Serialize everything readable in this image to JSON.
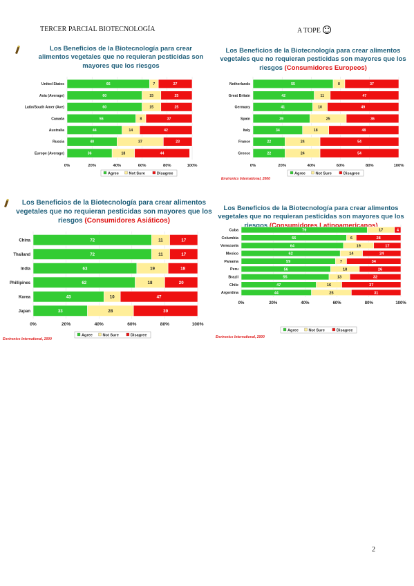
{
  "header": {
    "left": "TERCER PARCIAL BIOTECNOLOGÍA",
    "right": "A TOPE"
  },
  "page_number": "2",
  "title_main": "Los Beneficios de la Biotecnología para crear alimentos vegetales que no requieran pesticidas son mayores que los riesgos",
  "colors": {
    "agree": "#33cc33",
    "not_sure": "#ffee99",
    "disagree": "#ee1111",
    "title": "#1f5f7a",
    "highlight": "#dd1111"
  },
  "legend_labels": [
    "Agree",
    "Not Sure",
    "Disagree"
  ],
  "chart_data": [
    {
      "type": "bar",
      "orientation": "horizontal",
      "stacked": true,
      "title": "Los Beneficios de la Biotecnología para crear alimentos vegetales que no requieran pesticidas son mayores que los riesgos",
      "title_suffix": "",
      "categories": [
        "United States",
        "Asia (Average)",
        "Latin/South Amer (Ave)",
        "Canada",
        "Australia",
        "Russia",
        "Europe (Average)"
      ],
      "series": [
        {
          "name": "Agree",
          "values": [
            66,
            60,
            60,
            55,
            44,
            40,
            36
          ]
        },
        {
          "name": "Not Sure",
          "values": [
            7,
            15,
            15,
            8,
            14,
            37,
            18
          ]
        },
        {
          "name": "Disagree",
          "values": [
            27,
            25,
            25,
            37,
            42,
            23,
            44
          ]
        }
      ],
      "xlim": [
        0,
        100
      ],
      "xticks": [
        "0%",
        "20%",
        "40%",
        "60%",
        "80%",
        "100%"
      ],
      "legend": "bottom",
      "source": ""
    },
    {
      "type": "bar",
      "orientation": "horizontal",
      "stacked": true,
      "title": "Los Beneficios de la Biotecnología para crear alimentos vegetales que no requieran pesticidas son mayores que los riesgos",
      "title_suffix": "(Consumidores Europeos)",
      "categories": [
        "Netherlands",
        "Great Britain",
        "Germany",
        "Spain",
        "Italy",
        "France",
        "Greece"
      ],
      "series": [
        {
          "name": "Agree",
          "values": [
            55,
            42,
            41,
            39,
            34,
            22,
            22
          ]
        },
        {
          "name": "Not Sure",
          "values": [
            8,
            11,
            10,
            25,
            18,
            24,
            24
          ]
        },
        {
          "name": "Disagree",
          "values": [
            37,
            47,
            49,
            36,
            48,
            54,
            54
          ]
        }
      ],
      "xlim": [
        0,
        100
      ],
      "xticks": [
        "0%",
        "20%",
        "40%",
        "60%",
        "80%",
        "100%"
      ],
      "legend": "bottom",
      "source": "Environics International, 2000"
    },
    {
      "type": "bar",
      "orientation": "horizontal",
      "stacked": true,
      "title": "Los Beneficios de la Biotecnología para crear alimentos vegetales que no requieran pesticidas son mayores que los riesgos",
      "title_suffix": "(Consumidores Asiáticos)",
      "categories": [
        "China",
        "Thailand",
        "India",
        "Phillipines",
        "Korea",
        "Japan"
      ],
      "series": [
        {
          "name": "Agree",
          "values": [
            72,
            72,
            63,
            62,
            43,
            33
          ]
        },
        {
          "name": "Not Sure",
          "values": [
            11,
            11,
            19,
            18,
            10,
            28
          ]
        },
        {
          "name": "Disagree",
          "values": [
            17,
            17,
            18,
            20,
            47,
            39
          ]
        }
      ],
      "xlim": [
        0,
        100
      ],
      "xticks": [
        "0%",
        "20%",
        "40%",
        "60%",
        "80%",
        "100%"
      ],
      "legend": "bottom",
      "source": "Environics International, 2000"
    },
    {
      "type": "bar",
      "orientation": "horizontal",
      "stacked": true,
      "title": "Los Beneficios de la Biotecnología para crear alimentos vegetales que no requieran pesticidas son mayores que los riesgos",
      "title_suffix": "(Consumidores Latinoamericanos)",
      "categories": [
        "Cuba",
        "Columbia",
        "Venezuela",
        "Mexico",
        "Panama",
        "Peru",
        "Brazil",
        "Chile",
        "Argentina"
      ],
      "series": [
        {
          "name": "Agree",
          "values": [
            79,
            66,
            64,
            62,
            59,
            56,
            55,
            47,
            44
          ]
        },
        {
          "name": "Not Sure",
          "values": [
            17,
            6,
            19,
            14,
            7,
            18,
            13,
            16,
            25
          ]
        },
        {
          "name": "Disagree",
          "values": [
            4,
            28,
            17,
            24,
            34,
            26,
            32,
            37,
            31
          ]
        }
      ],
      "xlim": [
        0,
        100
      ],
      "xticks": [
        "0%",
        "20%",
        "40%",
        "60%",
        "80%",
        "100%"
      ],
      "legend": "bottom",
      "source": "Environics International, 2000"
    }
  ]
}
